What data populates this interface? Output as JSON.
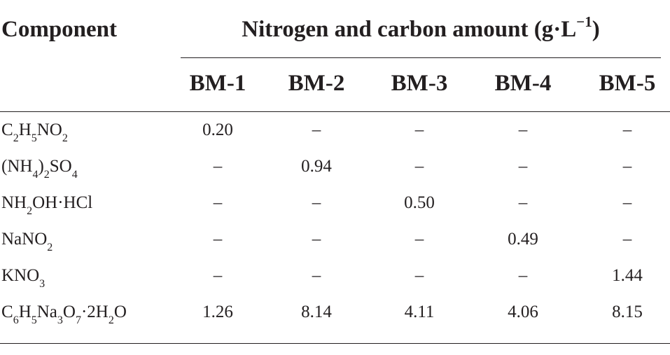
{
  "table": {
    "stub_header": "Component",
    "group_header": {
      "text": "Nitrogen and carbon amount (g·L",
      "superscript": "−1",
      "closing": ")"
    },
    "columns": [
      "BM-1",
      "BM-2",
      "BM-3",
      "BM-4",
      "BM-5"
    ],
    "rows": [
      {
        "label_parts": [
          {
            "t": "C"
          },
          {
            "t": "2",
            "sub": true
          },
          {
            "t": "H"
          },
          {
            "t": "5",
            "sub": true
          },
          {
            "t": "NO"
          },
          {
            "t": "2",
            "sub": true
          }
        ],
        "values": [
          "0.20",
          "–",
          "–",
          "–",
          "–"
        ]
      },
      {
        "label_parts": [
          {
            "t": "(NH"
          },
          {
            "t": "4",
            "sub": true
          },
          {
            "t": ")"
          },
          {
            "t": "2",
            "sub": true
          },
          {
            "t": "SO"
          },
          {
            "t": "4",
            "sub": true
          }
        ],
        "values": [
          "–",
          "0.94",
          "–",
          "–",
          "–"
        ]
      },
      {
        "label_parts": [
          {
            "t": "NH"
          },
          {
            "t": "2",
            "sub": true
          },
          {
            "t": "OH·HCl"
          }
        ],
        "values": [
          "–",
          "–",
          "0.50",
          "–",
          "–"
        ]
      },
      {
        "label_parts": [
          {
            "t": "NaNO"
          },
          {
            "t": "2",
            "sub": true
          }
        ],
        "values": [
          "–",
          "–",
          "–",
          "0.49",
          "–"
        ]
      },
      {
        "label_parts": [
          {
            "t": "KNO"
          },
          {
            "t": "3",
            "sub": true
          }
        ],
        "values": [
          "–",
          "–",
          "–",
          "–",
          "1.44"
        ]
      },
      {
        "label_parts": [
          {
            "t": "C"
          },
          {
            "t": "6",
            "sub": true
          },
          {
            "t": "H"
          },
          {
            "t": "5",
            "sub": true
          },
          {
            "t": "Na"
          },
          {
            "t": "3",
            "sub": true
          },
          {
            "t": "O"
          },
          {
            "t": "7",
            "sub": true
          },
          {
            "t": "·2H"
          },
          {
            "t": "2",
            "sub": true
          },
          {
            "t": "O"
          }
        ],
        "values": [
          "1.26",
          "8.14",
          "4.11",
          "4.06",
          "8.15"
        ]
      }
    ]
  }
}
